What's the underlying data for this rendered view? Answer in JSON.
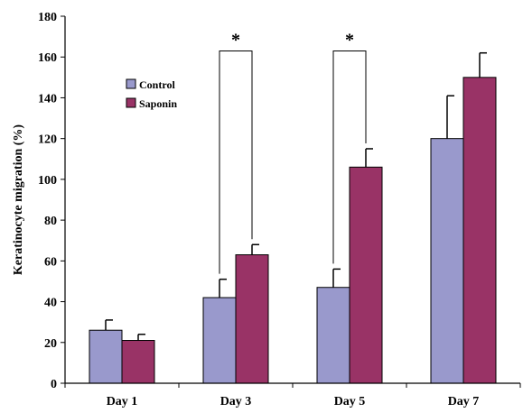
{
  "chart_data": {
    "type": "bar",
    "title": "",
    "xlabel": "",
    "ylabel": "Keratinocyte migration (%)",
    "ylim": [
      0,
      180
    ],
    "yticks": [
      0,
      20,
      40,
      60,
      80,
      100,
      120,
      140,
      160,
      180
    ],
    "categories": [
      "Day 1",
      "Day 3",
      "Day 5",
      "Day 7"
    ],
    "series": [
      {
        "name": "Control",
        "color": "#9999CC",
        "values": [
          26,
          42,
          47,
          120
        ],
        "errors": [
          5,
          9,
          9,
          21
        ]
      },
      {
        "name": "Saponin",
        "color": "#993366",
        "values": [
          21,
          63,
          106,
          150
        ],
        "errors": [
          3,
          5,
          9,
          12
        ]
      }
    ],
    "legend": {
      "position": "top-left"
    },
    "grid": false,
    "significance": [
      {
        "category": "Day 3",
        "label": "*"
      },
      {
        "category": "Day 5",
        "label": "*"
      }
    ]
  }
}
